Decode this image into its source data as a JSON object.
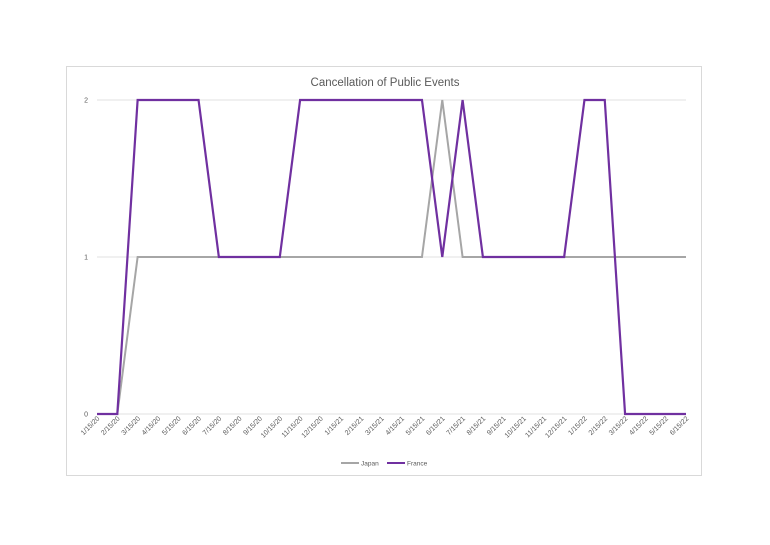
{
  "chart_data": {
    "type": "line",
    "title": "Cancellation of Public Events",
    "x": [
      "1/15/20",
      "2/15/20",
      "3/15/20",
      "4/15/20",
      "5/15/20",
      "6/15/20",
      "7/15/20",
      "8/15/20",
      "9/15/20",
      "10/15/20",
      "11/15/20",
      "12/15/20",
      "1/15/21",
      "2/15/21",
      "3/15/21",
      "4/15/21",
      "5/15/21",
      "6/15/21",
      "7/15/21",
      "8/15/21",
      "9/15/21",
      "10/15/21",
      "11/15/21",
      "12/15/21",
      "1/15/22",
      "2/15/22",
      "3/15/22",
      "4/15/22",
      "5/15/22",
      "6/15/22"
    ],
    "series": [
      {
        "name": "Japan",
        "color": "#a6a6a6",
        "values": [
          0,
          0,
          1,
          1,
          1,
          1,
          1,
          1,
          1,
          1,
          1,
          1,
          1,
          1,
          1,
          1,
          1,
          2,
          1,
          1,
          1,
          1,
          1,
          1,
          1,
          1,
          1,
          1,
          1,
          1
        ]
      },
      {
        "name": "France",
        "color": "#7030a0",
        "values": [
          0,
          0,
          2,
          2,
          2,
          2,
          1,
          1,
          1,
          1,
          2,
          2,
          2,
          2,
          2,
          2,
          2,
          1,
          2,
          1,
          1,
          1,
          1,
          1,
          2,
          2,
          0,
          0,
          0,
          0
        ]
      }
    ],
    "y_ticks": [
      "0",
      "1",
      "2"
    ],
    "ylim": [
      0,
      2
    ],
    "grid": true,
    "legend_position": "bottom"
  }
}
